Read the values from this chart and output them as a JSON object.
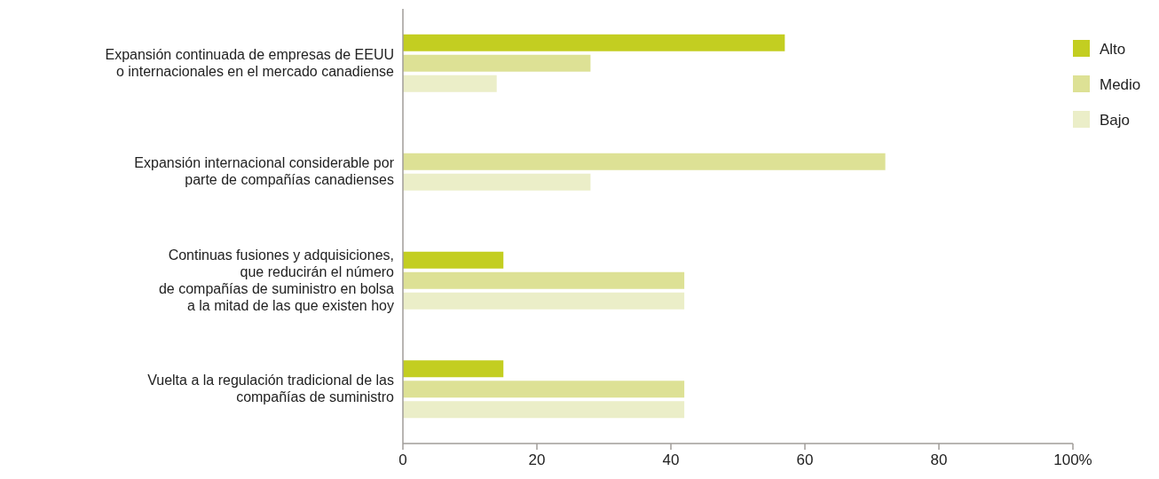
{
  "chart_data": {
    "type": "bar",
    "orientation": "horizontal",
    "categories": [
      "Expansión continuada de empresas de EEUU\no internacionales en el mercado canadiense",
      "Expansión internacional considerable por\nparte de compañías canadienses",
      "Continuas fusiones y adquisiciones,\nque reducirán el número\nde compañías de suministro en bolsa\na la mitad de las que existen hoy",
      "Vuelta a la regulación tradicional de las\ncompañías de suministro"
    ],
    "series": [
      {
        "name": "Alto",
        "color": "#c3ce21",
        "values": [
          57,
          null,
          15,
          15
        ]
      },
      {
        "name": "Medio",
        "color": "#dde195",
        "values": [
          28,
          72,
          42,
          42
        ]
      },
      {
        "name": "Bajo",
        "color": "#ebeec8",
        "values": [
          14,
          28,
          42,
          42
        ]
      }
    ],
    "xlim": [
      0,
      100
    ],
    "xticks": [
      0,
      20,
      40,
      60,
      80,
      {
        "value": 100,
        "label": "100%"
      }
    ],
    "legend": "top right",
    "grid": false
  }
}
